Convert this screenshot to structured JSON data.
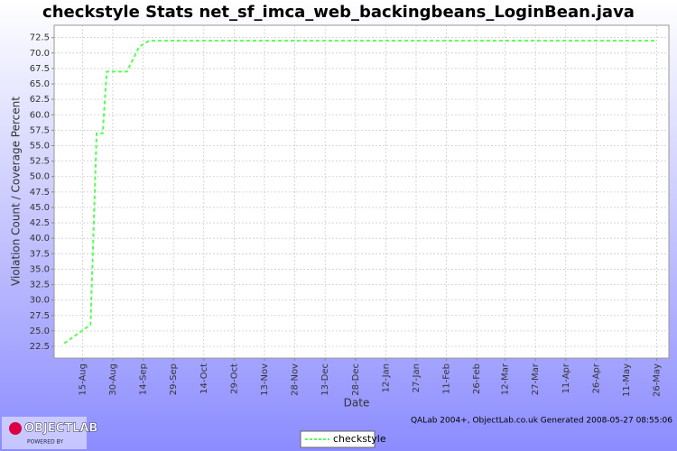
{
  "chart_data": {
    "type": "line",
    "title": "checkstyle  Stats net_sf_imca_web_backingbeans_LoginBean.java",
    "x_label": "Date",
    "y_label": "Violation Count / Coverage Percent",
    "x": [
      "6-Aug",
      "19-Aug",
      "22-Aug",
      "25-Aug",
      "27-Aug",
      "6-Sep",
      "12-Sep",
      "17-Sep",
      "26-May"
    ],
    "series": [
      {
        "name": "checkstyle",
        "color": "#55ff55",
        "values": [
          23,
          26,
          57,
          57,
          67,
          67,
          71,
          72,
          72
        ]
      }
    ],
    "xlim": [
      "1-Aug",
      "1-Jun"
    ],
    "xticks": [
      "15-Aug",
      "30-Aug",
      "14-Sep",
      "29-Sep",
      "14-Oct",
      "29-Oct",
      "13-Nov",
      "28-Nov",
      "13-Dec",
      "28-Dec",
      "12-Jan",
      "27-Jan",
      "11-Feb",
      "26-Feb",
      "12-Mar",
      "27-Mar",
      "11-Apr",
      "26-Apr",
      "11-May",
      "26-May"
    ],
    "ylim": [
      20.6,
      74.5
    ],
    "yticks": [
      22.5,
      {
        "value": 25,
        "label": "25.0"
      },
      27.5,
      {
        "value": 30,
        "label": "30.0"
      },
      32.5,
      {
        "value": 35,
        "label": "35.0"
      },
      37.5,
      {
        "value": 40,
        "label": "40.0"
      },
      42.5,
      {
        "value": 45,
        "label": "45.0"
      },
      47.5,
      {
        "value": 50,
        "label": "50.0"
      },
      52.5,
      {
        "value": 55,
        "label": "55.0"
      },
      57.5,
      {
        "value": 60,
        "label": "60.0"
      },
      62.5,
      {
        "value": 65,
        "label": "65.0"
      },
      67.5,
      {
        "value": 70,
        "label": "70.0"
      },
      72.5
    ],
    "grid": true,
    "footer": "QALab 2004+, ObjectLab.co.uk  Generated 2008-05-27 08:55:06",
    "logo": {
      "name": "OBJECTLAB",
      "tagline": "POWERED BY"
    }
  }
}
